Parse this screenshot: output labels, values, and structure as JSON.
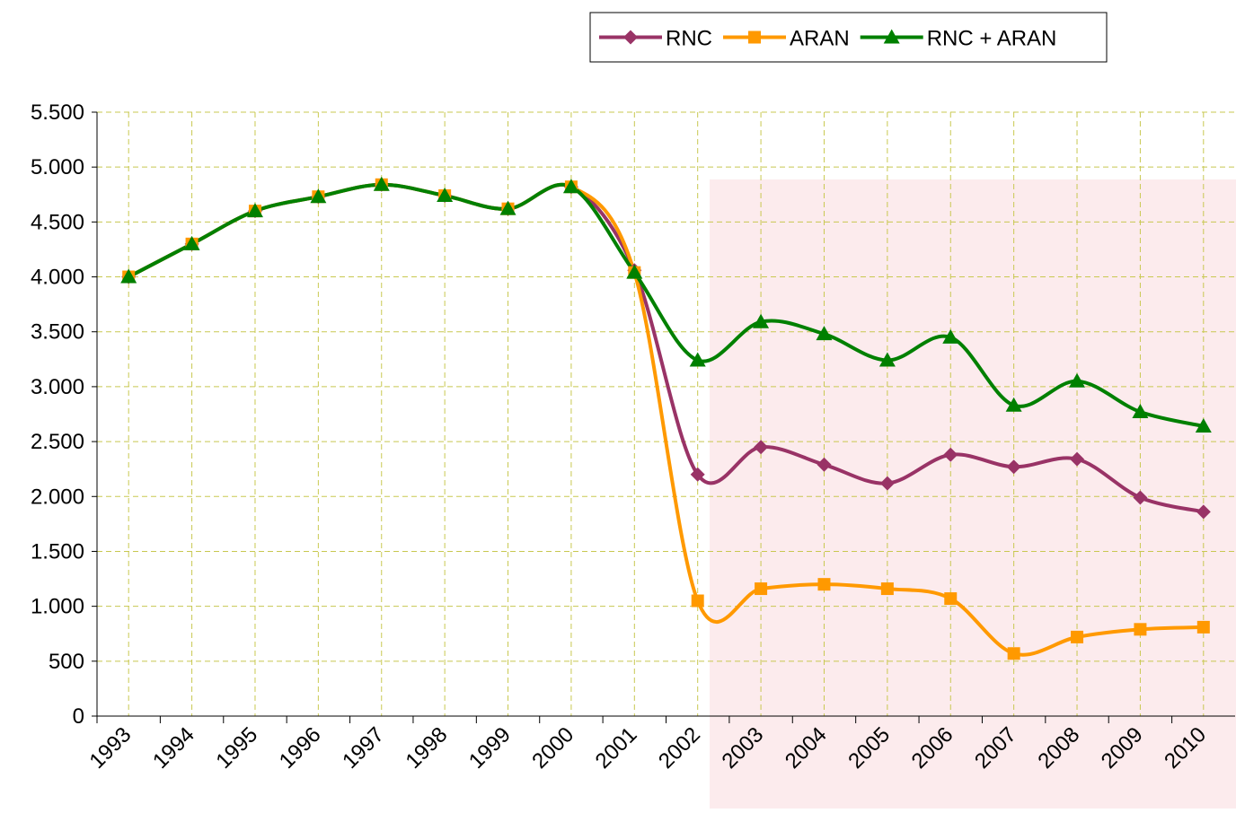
{
  "chart_data": {
    "type": "line",
    "categories": [
      "1993",
      "1994",
      "1995",
      "1996",
      "1997",
      "1998",
      "1999",
      "2000",
      "2001",
      "2002",
      "2003",
      "2004",
      "2005",
      "2006",
      "2007",
      "2008",
      "2009",
      "2010"
    ],
    "series": [
      {
        "name": "RNC",
        "color": "#993366",
        "marker": "diamond",
        "values": [
          4000,
          4300,
          4600,
          4730,
          4840,
          4740,
          4620,
          4820,
          4060,
          2200,
          2450,
          2290,
          2120,
          2380,
          2270,
          2340,
          1990,
          1860
        ]
      },
      {
        "name": "ARAN",
        "color": "#ff9900",
        "marker": "square",
        "values": [
          4000,
          4300,
          4600,
          4730,
          4840,
          4740,
          4620,
          4820,
          4040,
          1050,
          1160,
          1200,
          1160,
          1070,
          570,
          720,
          790,
          810
        ]
      },
      {
        "name": "RNC + ARAN",
        "color": "#008000",
        "marker": "triangle",
        "values": [
          4000,
          4300,
          4600,
          4730,
          4840,
          4740,
          4620,
          4820,
          4040,
          3240,
          3590,
          3480,
          3240,
          3450,
          2830,
          3050,
          2770,
          2640
        ]
      }
    ],
    "ylim": [
      0,
      5500
    ],
    "yticks": [
      0,
      500,
      {
        "value": 1000,
        "label": "1.000"
      },
      {
        "value": 1500,
        "label": "1.500"
      },
      {
        "value": 2000,
        "label": "2.000"
      },
      {
        "value": 2500,
        "label": "2.500"
      },
      {
        "value": 3000,
        "label": "3.000"
      },
      {
        "value": 3500,
        "label": "3.500"
      },
      {
        "value": 4000,
        "label": "4.000"
      },
      {
        "value": 4500,
        "label": "4.500"
      },
      {
        "value": 5000,
        "label": "5.000"
      },
      {
        "value": 5500,
        "label": "5.500"
      }
    ],
    "grid": true,
    "legend": "top-right"
  }
}
